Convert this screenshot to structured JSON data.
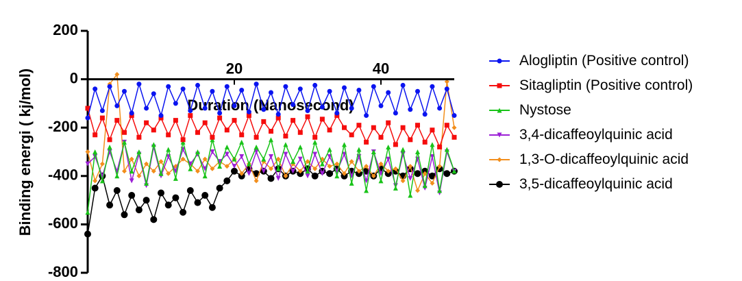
{
  "chart_data": {
    "type": "line",
    "xlabel": "Duration (Nanosecond)",
    "ylabel": "Binding energi ( kj/mol)",
    "xlim": [
      0,
      50
    ],
    "xticks": [
      20,
      40
    ],
    "ylim": [
      -800,
      200
    ],
    "yticks": [
      -800,
      -600,
      -400,
      -200,
      0,
      200
    ],
    "x": [
      0,
      1,
      2,
      3,
      4,
      5,
      6,
      7,
      8,
      9,
      10,
      11,
      12,
      13,
      14,
      15,
      16,
      17,
      18,
      19,
      20,
      21,
      22,
      23,
      24,
      25,
      26,
      27,
      28,
      29,
      30,
      31,
      32,
      33,
      34,
      35,
      36,
      37,
      38,
      39,
      40,
      41,
      42,
      43,
      44,
      45,
      46,
      47,
      48,
      49,
      50
    ],
    "series": [
      {
        "name": "3,5-dicaffeoylquinic acid",
        "color": "#000000",
        "marker": "circle",
        "values": [
          -640,
          -450,
          -400,
          -520,
          -460,
          -560,
          -480,
          -540,
          -500,
          -580,
          -470,
          -520,
          -490,
          -550,
          -460,
          -510,
          -480,
          -530,
          -450,
          -420,
          -380,
          -400,
          -370,
          -390,
          -380,
          -410,
          -370,
          -400,
          -380,
          -390,
          -370,
          -400,
          -380,
          -390,
          -370,
          -400,
          -380,
          -390,
          -380,
          -400,
          -370,
          -390,
          -380,
          -400,
          -370,
          -390,
          -380,
          -400,
          -370,
          -390,
          -380
        ]
      },
      {
        "name": "1,3-O-dicaffeoylquinic acid",
        "color": "#f28e1c",
        "marker": "diamond",
        "values": [
          -300,
          -420,
          -350,
          -20,
          20,
          -380,
          -330,
          -400,
          -350,
          -380,
          -340,
          -390,
          -360,
          -330,
          -350,
          -380,
          -330,
          -370,
          -340,
          -360,
          -330,
          -390,
          -350,
          -420,
          -340,
          -370,
          -330,
          -400,
          -350,
          -380,
          -340,
          -370,
          -330,
          -360,
          -350,
          -390,
          -340,
          -380,
          -360,
          -400,
          -350,
          -380,
          -370,
          -420,
          -360,
          -460,
          -390,
          -430,
          -360,
          -10,
          -200
        ]
      },
      {
        "name": "3,4-dicaffeoylquinic acid",
        "color": "#9b1fd6",
        "marker": "tri-down",
        "values": [
          -350,
          -320,
          -400,
          -300,
          -380,
          -260,
          -420,
          -310,
          -440,
          -280,
          -400,
          -320,
          -380,
          -290,
          -350,
          -310,
          -370,
          -300,
          -340,
          -310,
          -360,
          -320,
          -390,
          -300,
          -380,
          -320,
          -410,
          -310,
          -380,
          -330,
          -400,
          -310,
          -390,
          -320,
          -380,
          -310,
          -400,
          -320,
          -420,
          -300,
          -390,
          -330,
          -440,
          -310,
          -410,
          -330,
          -450,
          -320,
          -470,
          -300,
          -380
        ]
      },
      {
        "name": "Nystose",
        "color": "#19c319",
        "marker": "tri-up",
        "values": [
          -550,
          -300,
          -420,
          -280,
          -400,
          -260,
          -380,
          -300,
          -430,
          -270,
          -390,
          -290,
          -410,
          -260,
          -370,
          -300,
          -400,
          -250,
          -360,
          -280,
          -330,
          -260,
          -350,
          -280,
          -330,
          -250,
          -370,
          -270,
          -340,
          -280,
          -380,
          -260,
          -350,
          -290,
          -400,
          -270,
          -430,
          -290,
          -460,
          -300,
          -420,
          -280,
          -450,
          -290,
          -480,
          -300,
          -440,
          -270,
          -460,
          -290,
          -380
        ]
      },
      {
        "name": "Sitagliptin (Positive control)",
        "color": "#f50d0d",
        "marker": "square",
        "values": [
          -120,
          -230,
          -160,
          -250,
          -170,
          -220,
          -150,
          -240,
          -180,
          -210,
          -160,
          -230,
          -170,
          -250,
          -150,
          -220,
          -180,
          -240,
          -160,
          -210,
          -170,
          -230,
          -150,
          -240,
          -175,
          -215,
          -160,
          -235,
          -170,
          -220,
          -155,
          -240,
          -165,
          -210,
          -150,
          -200,
          -230,
          -190,
          -260,
          -200,
          -240,
          -180,
          -270,
          -200,
          -250,
          -190,
          -260,
          -210,
          -280,
          -190,
          -240
        ]
      },
      {
        "name": "Alogliptin (Positive control)",
        "color": "#0a14f0",
        "marker": "circle",
        "values": [
          -160,
          -40,
          -130,
          -30,
          -110,
          -50,
          -140,
          -20,
          -120,
          -60,
          -150,
          -30,
          -100,
          -40,
          -130,
          -25,
          -120,
          -50,
          -140,
          -30,
          -110,
          -45,
          -135,
          -20,
          -125,
          -55,
          -145,
          -30,
          -105,
          -40,
          -130,
          -25,
          -115,
          -50,
          -140,
          -35,
          -120,
          -45,
          -150,
          -30,
          -110,
          -55,
          -140,
          -25,
          -125,
          -50,
          -145,
          -30,
          -120,
          -40,
          -150
        ]
      }
    ],
    "legend_order": [
      5,
      4,
      3,
      2,
      1,
      0
    ]
  }
}
